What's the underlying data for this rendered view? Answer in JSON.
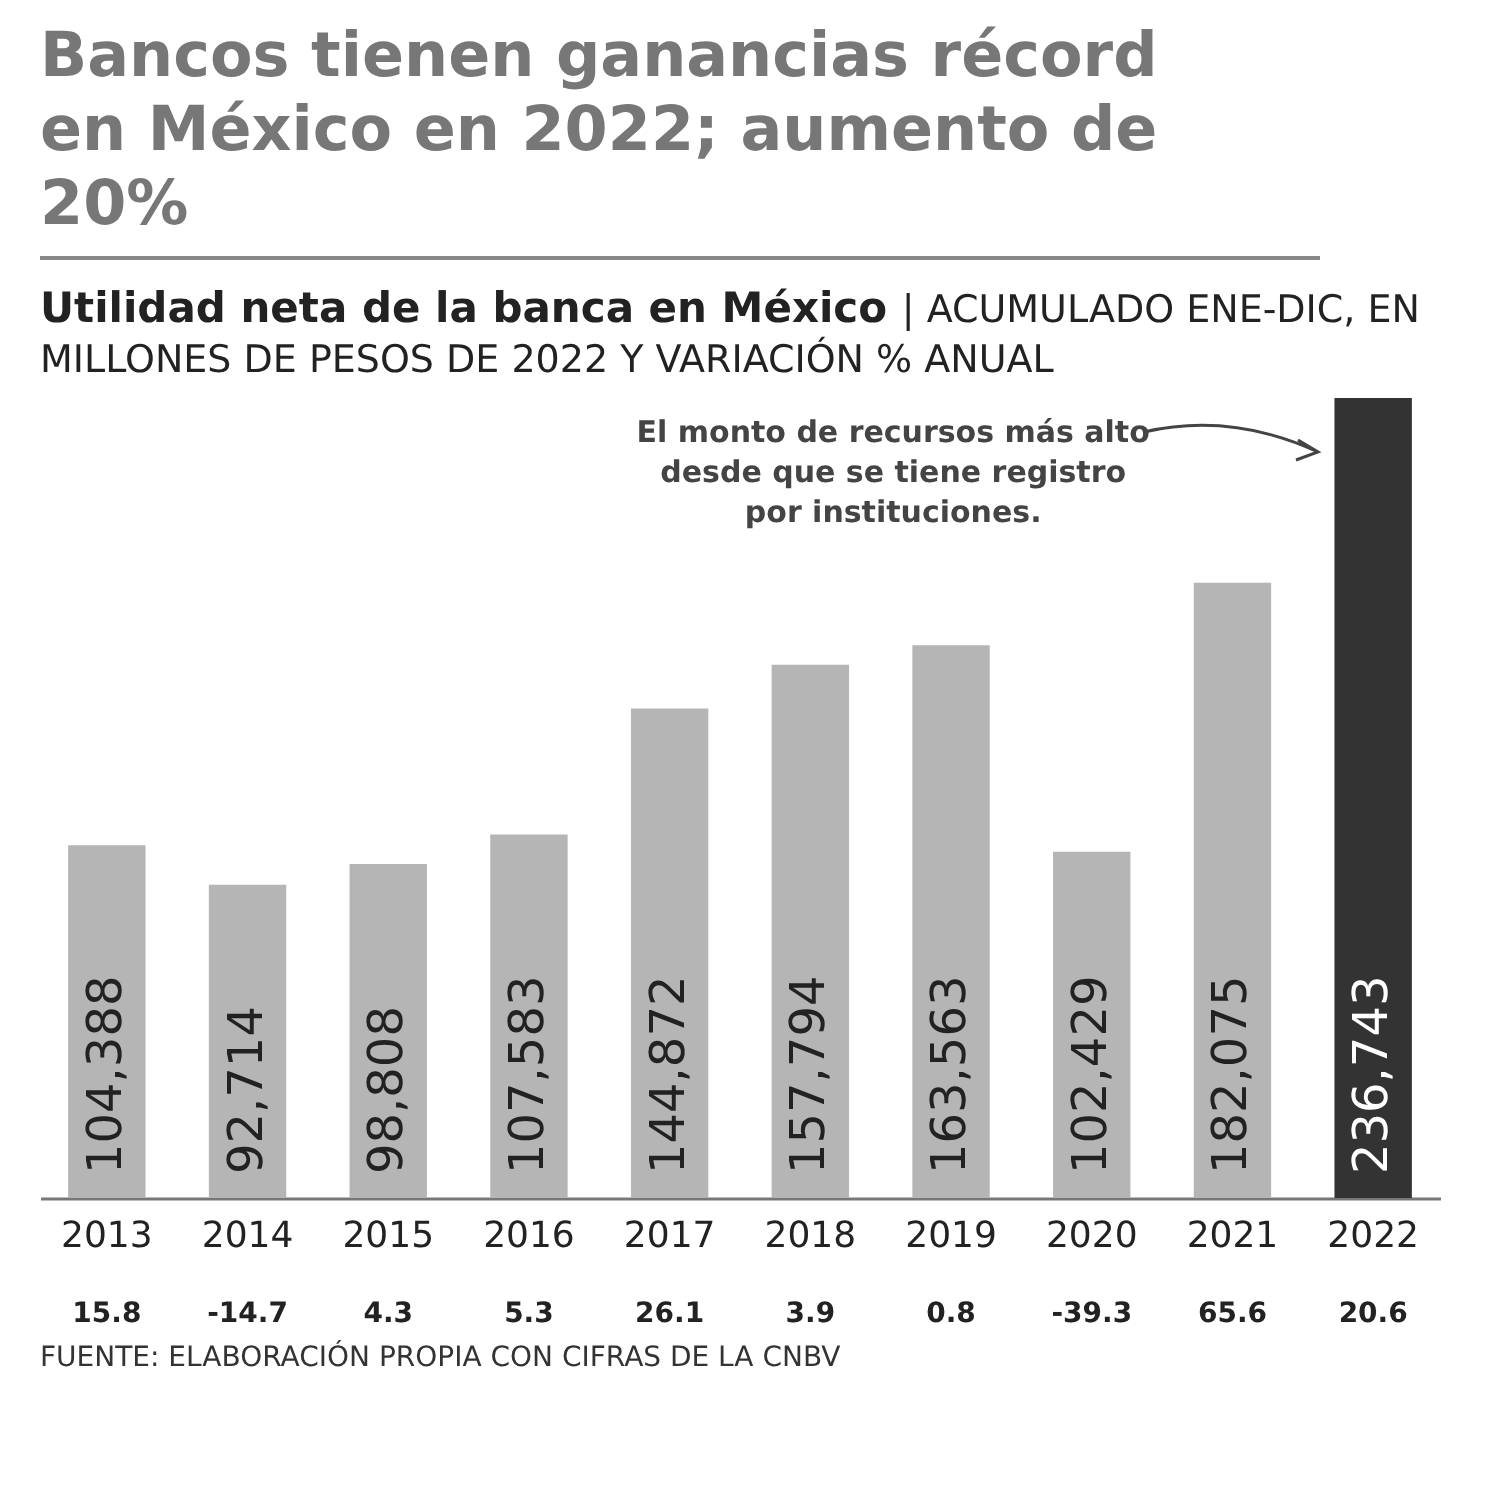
{
  "chart_data": {
    "type": "bar",
    "title": "Bancos tienen ganancias récord en México en 2022; aumento de 20%",
    "subtitle": "Utilidad neta de la banca en México | ACUMULADO ENE-DIC, EN MILLONES DE PESOS DE 2022 Y VARIACIÓN % ANUAL",
    "categories": [
      "2013",
      "2014",
      "2015",
      "2016",
      "2017",
      "2018",
      "2019",
      "2020",
      "2021",
      "2022"
    ],
    "values": [
      104388,
      92714,
      98808,
      107583,
      144872,
      157794,
      163563,
      102429,
      182075,
      236743
    ],
    "value_labels": [
      "104,388",
      "92,714",
      "98,808",
      "107,583",
      "144,872",
      "157,794",
      "163,563",
      "102,429",
      "182,075",
      "236,743"
    ],
    "colors": [
      "#b5b5b5",
      "#b5b5b5",
      "#b5b5b5",
      "#b5b5b5",
      "#b5b5b5",
      "#b5b5b5",
      "#b5b5b5",
      "#b5b5b5",
      "#b5b5b5",
      "#333333"
    ],
    "annotations": [
      "El monto de recursos más alto desde que se tiene registro por instituciones.",
      "15.8",
      "-14.7",
      "4.3",
      "5.3",
      "26.1",
      "3.9",
      "0.8",
      "-39.3",
      "65.6",
      "20.6",
      "FUENTE: ELABORACIÓN PROPIA CON CIFRAS DE LA CNBV"
    ]
  }
}
